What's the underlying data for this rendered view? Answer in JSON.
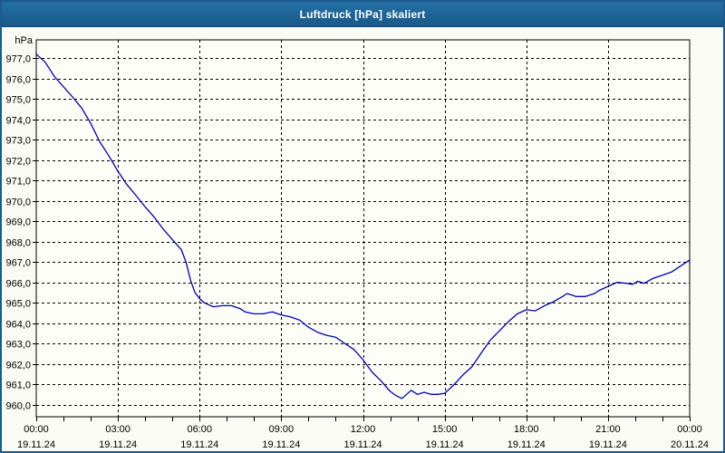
{
  "window": {
    "title": "Luftdruck [hPa] skaliert"
  },
  "colors": {
    "titlebar": "#1d6496",
    "frame": "#1c5a8e",
    "background": "#fafcf3",
    "plot_background": "#fdfef8",
    "line": "#0000b2",
    "grid": "#000000",
    "axis": "#000000",
    "text": "#000000",
    "title_text": "#ffffff"
  },
  "chart_data": {
    "type": "line",
    "title": "Luftdruck [hPa] skaliert",
    "y_unit_label": "hPa",
    "xlabel": "",
    "ylabel": "hPa",
    "ylim": [
      959.4,
      977.9
    ],
    "xlim_hours": [
      0,
      24
    ],
    "grid": "dashed",
    "legend": "none",
    "yticks": [
      {
        "v": 960,
        "label": "960,0"
      },
      {
        "v": 961,
        "label": "961,0"
      },
      {
        "v": 962,
        "label": "962,0"
      },
      {
        "v": 963,
        "label": "963,0"
      },
      {
        "v": 964,
        "label": "964,0"
      },
      {
        "v": 965,
        "label": "965,0"
      },
      {
        "v": 966,
        "label": "966,0"
      },
      {
        "v": 967,
        "label": "967,0"
      },
      {
        "v": 968,
        "label": "968,0"
      },
      {
        "v": 969,
        "label": "969,0"
      },
      {
        "v": 970,
        "label": "970,0"
      },
      {
        "v": 971,
        "label": "971,0"
      },
      {
        "v": 972,
        "label": "972,0"
      },
      {
        "v": 973,
        "label": "973,0"
      },
      {
        "v": 974,
        "label": "974,0"
      },
      {
        "v": 975,
        "label": "975,0"
      },
      {
        "v": 976,
        "label": "976,0"
      },
      {
        "v": 977,
        "label": "977,0"
      }
    ],
    "xticks": [
      {
        "t": 0,
        "time": "00:00",
        "date": "19.11.24"
      },
      {
        "t": 3,
        "time": "03:00",
        "date": "19.11.24"
      },
      {
        "t": 6,
        "time": "06:00",
        "date": "19.11.24"
      },
      {
        "t": 9,
        "time": "09:00",
        "date": "19.11.24"
      },
      {
        "t": 12,
        "time": "12:00",
        "date": "19.11.24"
      },
      {
        "t": 15,
        "time": "15:00",
        "date": "19.11.24"
      },
      {
        "t": 18,
        "time": "18:00",
        "date": "19.11.24"
      },
      {
        "t": 21,
        "time": "21:00",
        "date": "19.11.24"
      },
      {
        "t": 24,
        "time": "00:00",
        "date": "20.11.24"
      }
    ],
    "minor_xtick_every_hours": 1,
    "vgrid_hours": [
      3,
      6,
      9,
      12,
      15,
      18,
      21
    ],
    "series": [
      {
        "name": "Luftdruck",
        "points": [
          [
            0,
            977.2
          ],
          [
            0.33,
            976.8
          ],
          [
            0.67,
            976.1
          ],
          [
            1,
            975.6
          ],
          [
            1.33,
            975.1
          ],
          [
            1.67,
            974.55
          ],
          [
            2,
            973.8
          ],
          [
            2.33,
            972.9
          ],
          [
            2.67,
            972.2
          ],
          [
            3,
            971.45
          ],
          [
            3.33,
            970.8
          ],
          [
            3.67,
            970.25
          ],
          [
            4,
            969.7
          ],
          [
            4.33,
            969.2
          ],
          [
            4.67,
            968.6
          ],
          [
            5,
            968.1
          ],
          [
            5.33,
            967.6
          ],
          [
            5.5,
            967.0
          ],
          [
            5.67,
            966.1
          ],
          [
            5.83,
            965.5
          ],
          [
            6,
            965.2
          ],
          [
            6.17,
            965.0
          ],
          [
            6.33,
            964.9
          ],
          [
            6.5,
            964.8
          ],
          [
            6.83,
            964.85
          ],
          [
            7.17,
            964.85
          ],
          [
            7.5,
            964.7
          ],
          [
            7.67,
            964.55
          ],
          [
            8,
            964.45
          ],
          [
            8.33,
            964.45
          ],
          [
            8.67,
            964.55
          ],
          [
            9,
            964.4
          ],
          [
            9.33,
            964.3
          ],
          [
            9.67,
            964.15
          ],
          [
            10,
            963.8
          ],
          [
            10.33,
            963.55
          ],
          [
            10.67,
            963.4
          ],
          [
            11,
            963.3
          ],
          [
            11.33,
            963.0
          ],
          [
            11.67,
            962.7
          ],
          [
            12,
            962.2
          ],
          [
            12.33,
            961.6
          ],
          [
            12.67,
            961.15
          ],
          [
            13,
            960.65
          ],
          [
            13.2,
            960.45
          ],
          [
            13.43,
            960.3
          ],
          [
            13.6,
            960.5
          ],
          [
            13.77,
            960.7
          ],
          [
            14,
            960.5
          ],
          [
            14.25,
            960.6
          ],
          [
            14.5,
            960.5
          ],
          [
            14.75,
            960.5
          ],
          [
            15,
            960.55
          ],
          [
            15.33,
            960.95
          ],
          [
            15.67,
            961.45
          ],
          [
            16,
            961.85
          ],
          [
            16.33,
            962.5
          ],
          [
            16.67,
            963.15
          ],
          [
            17,
            963.6
          ],
          [
            17.33,
            964.05
          ],
          [
            17.67,
            964.45
          ],
          [
            18,
            964.65
          ],
          [
            18.33,
            964.6
          ],
          [
            18.67,
            964.85
          ],
          [
            19,
            965.05
          ],
          [
            19.33,
            965.3
          ],
          [
            19.5,
            965.45
          ],
          [
            19.83,
            965.3
          ],
          [
            20.17,
            965.3
          ],
          [
            20.5,
            965.45
          ],
          [
            20.67,
            965.6
          ],
          [
            21,
            965.8
          ],
          [
            21.33,
            966.0
          ],
          [
            21.67,
            965.95
          ],
          [
            21.9,
            965.9
          ],
          [
            22.1,
            966.05
          ],
          [
            22.33,
            965.95
          ],
          [
            22.67,
            966.2
          ],
          [
            23,
            966.35
          ],
          [
            23.33,
            966.5
          ],
          [
            23.67,
            966.8
          ],
          [
            24,
            967.1
          ]
        ]
      }
    ]
  }
}
